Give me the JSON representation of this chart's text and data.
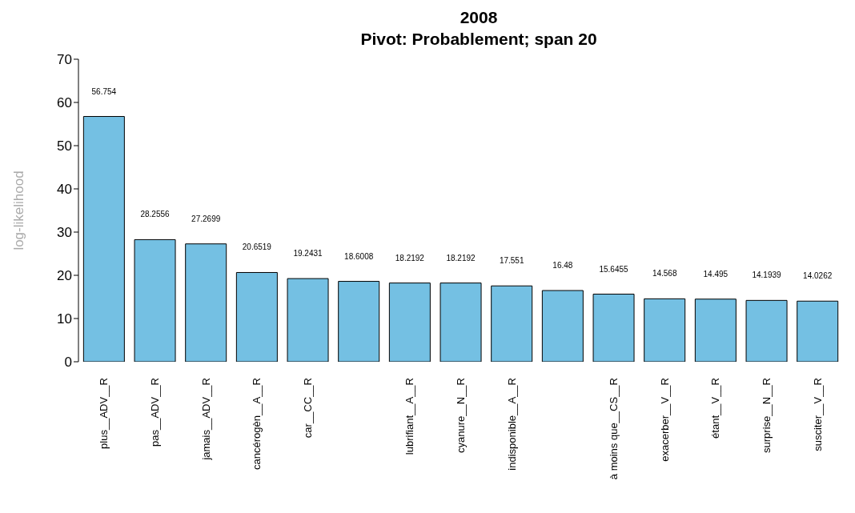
{
  "chart_data": {
    "type": "bar",
    "title": "2008",
    "subtitle": "Pivot: Probablement; span 20",
    "ylabel": "log-likelihood",
    "categories": [
      "plus__ADV__R",
      "pas__ADV__R",
      "jamais__ADV__R",
      "cancérogèn__A__R",
      "car__CC__R",
      null,
      "lubrifiant__A__R",
      "cyanure__N__R",
      "indisponible__A__R",
      null,
      "à moins que__CS__R",
      "exacerber__V__R",
      "étant__V__R",
      "surprise__N__R",
      "susciter__V__R"
    ],
    "values": [
      56.754,
      28.2556,
      27.2699,
      20.6519,
      19.2431,
      18.6008,
      18.2192,
      18.2192,
      17.551,
      16.48,
      15.6455,
      14.568,
      14.495,
      14.1939,
      14.0262
    ],
    "color": "#74c0e3",
    "ylim": [
      0,
      70
    ],
    "yticks": [
      0,
      10,
      20,
      30,
      40,
      50,
      60,
      70
    ],
    "grid": false,
    "data_labels": true
  }
}
